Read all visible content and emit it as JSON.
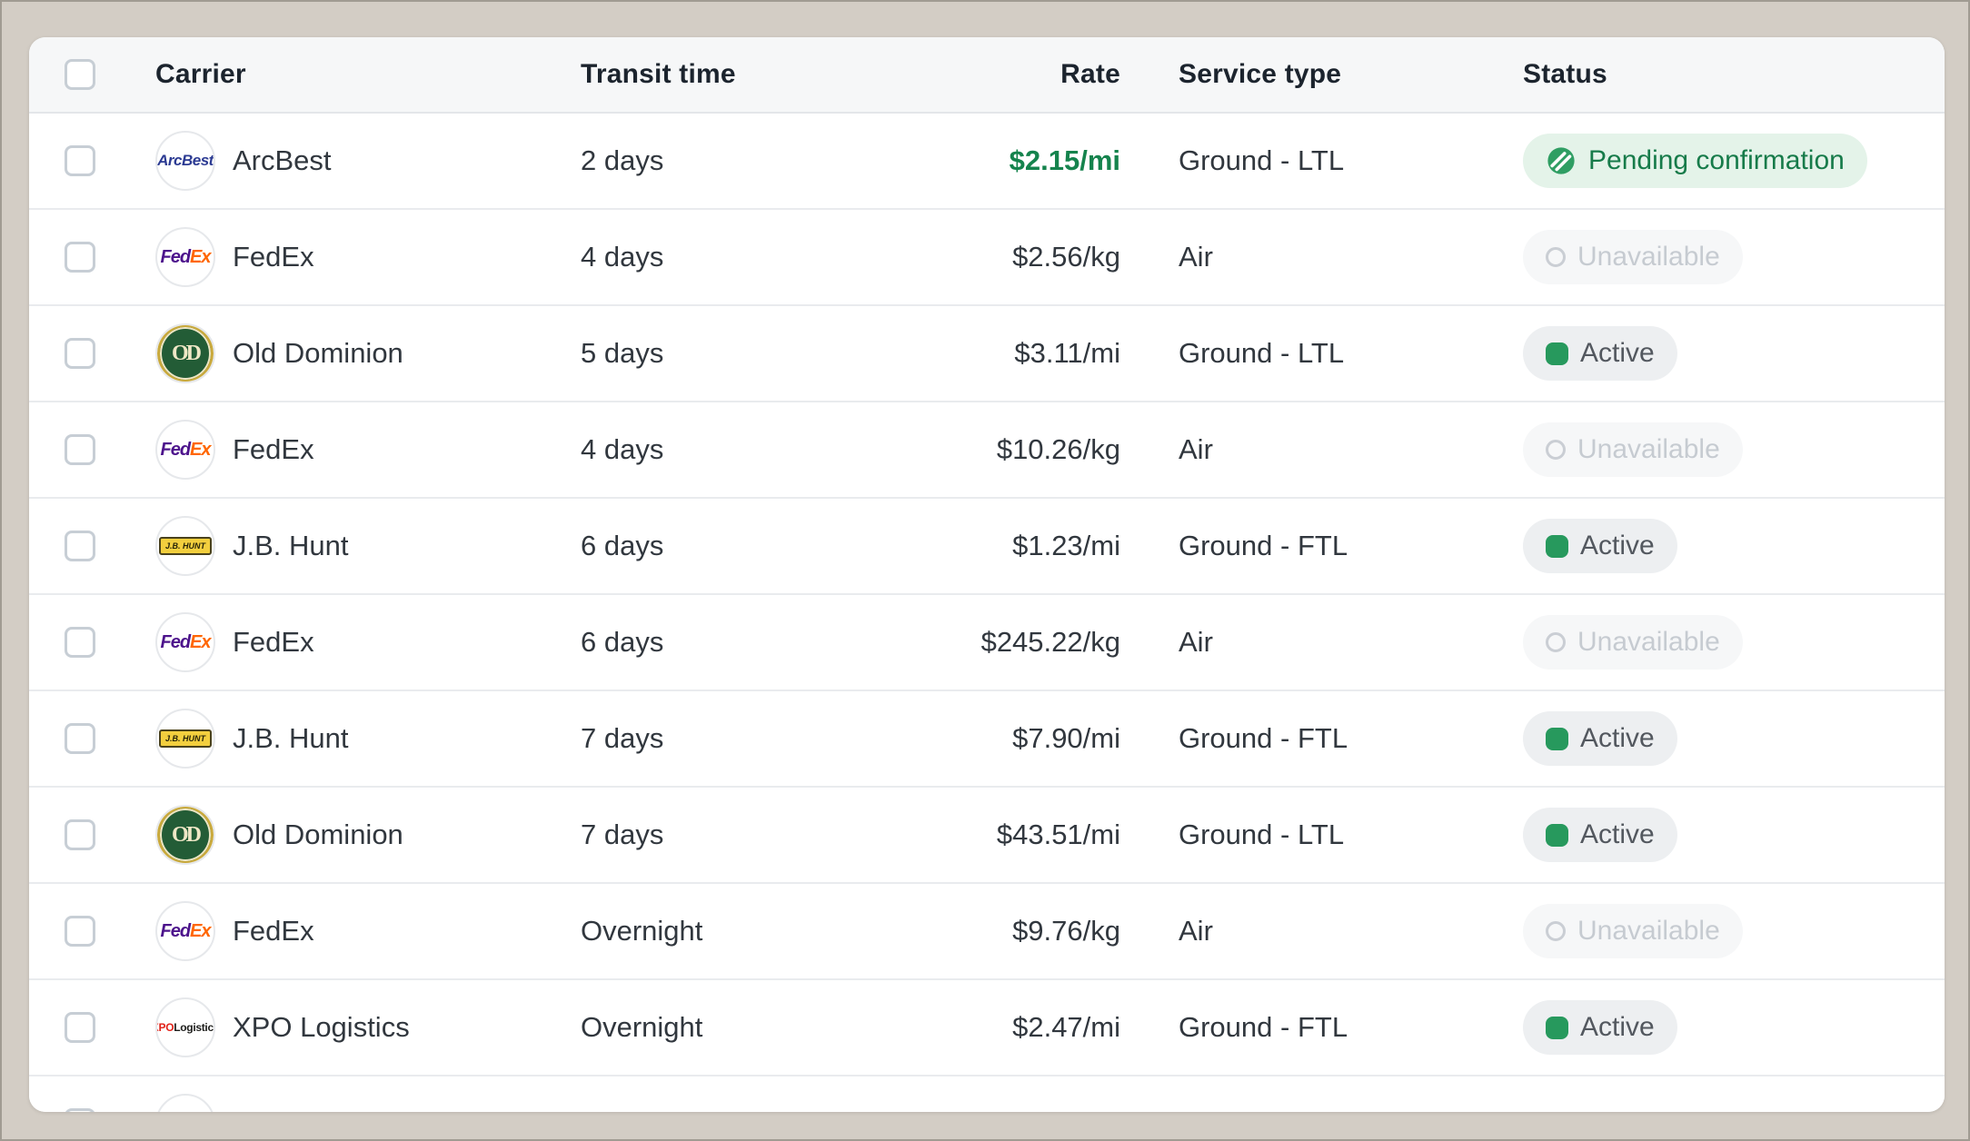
{
  "colors": {
    "frame_background": "#d3cdc5",
    "frame_border": "#a09b92",
    "card_background": "#ffffff",
    "header_background": "#f6f7f8",
    "divider": "#e9ebee",
    "header_text": "#1c242e",
    "row_text": "#31373e",
    "rate_highlight_green": "#15834d",
    "badge_pending_bg": "#e4f3e9",
    "badge_pending_text": "#177b4a",
    "badge_pending_icon": "#2f9e63",
    "badge_unavailable_bg": "#f6f7f8",
    "badge_unavailable_text": "#c6cbd1",
    "badge_active_bg": "#edeff1",
    "badge_active_text": "#53585f",
    "badge_active_dot": "#27995d",
    "checkbox_border": "#c7ced5"
  },
  "table": {
    "columns": {
      "carrier": "Carrier",
      "transit": "Transit time",
      "rate": "Rate",
      "service": "Service type",
      "status": "Status"
    },
    "statuses": {
      "pending": {
        "label": "Pending confirmation",
        "icon": "slashed-circle-icon"
      },
      "unavailable": {
        "label": "Unavailable",
        "icon": "hollow-ring-icon"
      },
      "active": {
        "label": "Active",
        "icon": "green-dot"
      }
    },
    "rows": [
      {
        "carrier": "ArcBest",
        "logo": "arcbest",
        "transit": "2 days",
        "rate": "$2.15/mi",
        "rate_highlight": true,
        "service": "Ground - LTL",
        "status": "pending"
      },
      {
        "carrier": "FedEx",
        "logo": "fedex",
        "transit": "4 days",
        "rate": "$2.56/kg",
        "rate_highlight": false,
        "service": "Air",
        "status": "unavailable"
      },
      {
        "carrier": "Old Dominion",
        "logo": "olddominion",
        "transit": "5 days",
        "rate": "$3.11/mi",
        "rate_highlight": false,
        "service": "Ground - LTL",
        "status": "active"
      },
      {
        "carrier": "FedEx",
        "logo": "fedex",
        "transit": "4 days",
        "rate": "$10.26/kg",
        "rate_highlight": false,
        "service": "Air",
        "status": "unavailable"
      },
      {
        "carrier": "J.B. Hunt",
        "logo": "jbhunt",
        "transit": "6 days",
        "rate": "$1.23/mi",
        "rate_highlight": false,
        "service": "Ground - FTL",
        "status": "active"
      },
      {
        "carrier": "FedEx",
        "logo": "fedex",
        "transit": "6 days",
        "rate": "$245.22/kg",
        "rate_highlight": false,
        "service": "Air",
        "status": "unavailable"
      },
      {
        "carrier": "J.B. Hunt",
        "logo": "jbhunt",
        "transit": "7 days",
        "rate": "$7.90/mi",
        "rate_highlight": false,
        "service": "Ground - FTL",
        "status": "active"
      },
      {
        "carrier": "Old Dominion",
        "logo": "olddominion",
        "transit": "7 days",
        "rate": "$43.51/mi",
        "rate_highlight": false,
        "service": "Ground - LTL",
        "status": "active"
      },
      {
        "carrier": "FedEx",
        "logo": "fedex",
        "transit": "Overnight",
        "rate": "$9.76/kg",
        "rate_highlight": false,
        "service": "Air",
        "status": "unavailable"
      },
      {
        "carrier": "XPO Logistics",
        "logo": "xpo",
        "transit": "Overnight",
        "rate": "$2.47/mi",
        "rate_highlight": false,
        "service": "Ground - FTL",
        "status": "active"
      },
      {
        "partial": true
      }
    ]
  },
  "logos": {
    "arcbest": {
      "text": "ArcBest"
    },
    "fedex": {
      "part1": "Fed",
      "part2": "Ex"
    },
    "olddominion": {
      "monogram": "OD",
      "arc_top": "OLD DOMINION",
      "arc_bottom": "FREIGHT LINE"
    },
    "jbhunt": {
      "text": "J.B. HUNT"
    },
    "xpo": {
      "part1": "XPO",
      "part2": "Logistics"
    }
  }
}
